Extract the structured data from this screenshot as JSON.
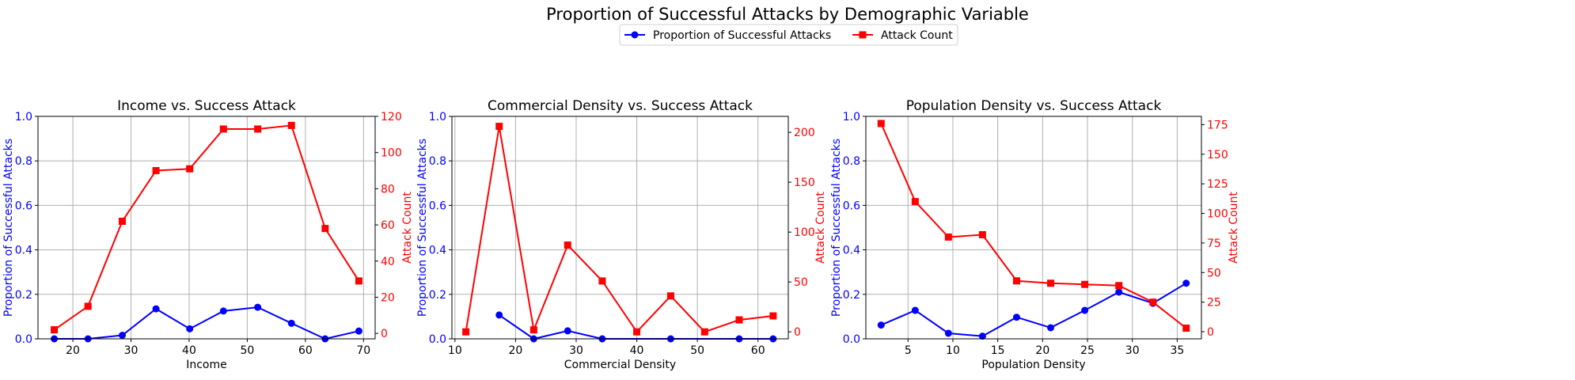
{
  "figure": {
    "title": "Proportion of Successful Attacks by Demographic Variable",
    "legend": {
      "placement": "top-center",
      "entries": [
        {
          "label": "Proportion of Successful Attacks",
          "color": "#0000ff",
          "marker": "circle"
        },
        {
          "label": "Attack Count",
          "color": "#ff0000",
          "marker": "square"
        }
      ]
    }
  },
  "chart_data": [
    {
      "type": "line",
      "title": "Income vs. Success Attack",
      "xlabel": "Income",
      "ylabel_left": "Proportion of Successful Attacks",
      "ylabel_right": "Attack Count",
      "xlim": [
        14,
        72
      ],
      "xticks": [
        20,
        30,
        40,
        50,
        60,
        70
      ],
      "ylim_left": [
        0,
        1
      ],
      "yticks_left": [
        "0.0",
        "0.2",
        "0.4",
        "0.6",
        "0.8",
        "1.0"
      ],
      "ylim_right": [
        -3,
        120
      ],
      "yticks_right": [
        0,
        20,
        40,
        60,
        80,
        100,
        120
      ],
      "grid": true,
      "series": [
        {
          "name": "Proportion of Successful Attacks",
          "axis": "left",
          "color": "#0000ff",
          "marker": "circle",
          "x": [
            16.8,
            22.6,
            28.5,
            34.3,
            40.1,
            45.9,
            51.8,
            57.6,
            63.4,
            69.2
          ],
          "y": [
            0.0,
            0.0,
            0.016,
            0.135,
            0.045,
            0.125,
            0.142,
            0.07,
            0.0,
            0.035
          ]
        },
        {
          "name": "Attack Count",
          "axis": "right",
          "color": "#ff0000",
          "marker": "square",
          "x": [
            16.8,
            22.6,
            28.5,
            34.3,
            40.1,
            45.9,
            51.8,
            57.6,
            63.4,
            69.2
          ],
          "y": [
            2,
            15,
            62,
            90,
            91,
            113,
            113,
            115,
            58,
            29
          ]
        }
      ]
    },
    {
      "type": "line",
      "title": "Commercial Density vs. Success Attack",
      "xlabel": "Commercial Density",
      "ylabel_left": "Proportion of Successful Attacks",
      "ylabel_right": "Attack Count",
      "xlim": [
        9.5,
        65
      ],
      "xticks": [
        10,
        20,
        30,
        40,
        50,
        60
      ],
      "ylim_left": [
        0,
        1
      ],
      "yticks_left": [
        "0.0",
        "0.2",
        "0.4",
        "0.6",
        "0.8",
        "1.0"
      ],
      "ylim_right": [
        -7,
        216
      ],
      "yticks_right": [
        0,
        50,
        100,
        150,
        200
      ],
      "grid": true,
      "series": [
        {
          "name": "Proportion of Successful Attacks",
          "axis": "left",
          "color": "#0000ff",
          "marker": "circle",
          "x": [
            17.3,
            23.0,
            28.6,
            34.3,
            45.6,
            56.9,
            62.5
          ],
          "y": [
            0.107,
            0.0,
            0.036,
            0.0,
            0.0,
            0.0,
            0.0
          ]
        },
        {
          "name": "Attack Count",
          "axis": "right",
          "color": "#ff0000",
          "marker": "square",
          "x": [
            11.8,
            17.3,
            23.0,
            28.6,
            34.3,
            40.0,
            45.6,
            51.2,
            56.9,
            62.5
          ],
          "y": [
            0,
            206,
            2,
            87,
            51,
            0,
            36,
            0,
            12,
            16
          ]
        }
      ]
    },
    {
      "type": "line",
      "title": "Population Density vs. Success Attack",
      "xlabel": "Population Density",
      "ylabel_left": "Proportion of Successful Attacks",
      "ylabel_right": "Attack Count",
      "xlim": [
        0.3,
        37.7
      ],
      "xticks": [
        5,
        10,
        15,
        20,
        25,
        30,
        35
      ],
      "ylim_left": [
        0,
        1
      ],
      "yticks_left": [
        "0.0",
        "0.2",
        "0.4",
        "0.6",
        "0.8",
        "1.0"
      ],
      "ylim_right": [
        -6,
        182
      ],
      "yticks_right": [
        0,
        25,
        50,
        75,
        100,
        125,
        150,
        175
      ],
      "grid": true,
      "series": [
        {
          "name": "Proportion of Successful Attacks",
          "axis": "left",
          "color": "#0000ff",
          "marker": "circle",
          "x": [
            2.0,
            5.8,
            9.5,
            13.3,
            17.1,
            20.9,
            24.7,
            28.5,
            32.3,
            36.0
          ],
          "y": [
            0.062,
            0.128,
            0.025,
            0.012,
            0.097,
            0.05,
            0.128,
            0.21,
            0.16,
            0.25
          ]
        },
        {
          "name": "Attack Count",
          "axis": "right",
          "color": "#ff0000",
          "marker": "square",
          "x": [
            2.0,
            5.8,
            9.5,
            13.3,
            17.1,
            20.9,
            24.7,
            28.5,
            32.3,
            36.0
          ],
          "y": [
            176,
            110,
            80,
            82,
            43,
            41,
            40,
            39,
            25,
            3
          ]
        }
      ]
    }
  ]
}
